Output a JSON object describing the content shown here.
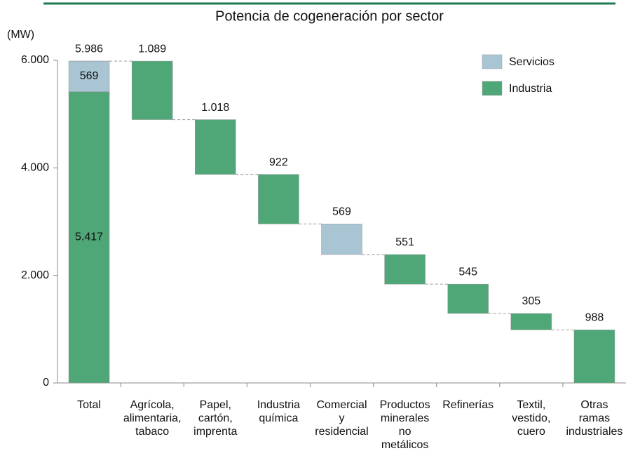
{
  "chart_data": {
    "type": "waterfall",
    "title": "Potencia de cogeneración por sector",
    "y_label": "(MW)",
    "categories": [
      [
        "Total"
      ],
      [
        "Agrícola,",
        "alimentaria,",
        "tabaco"
      ],
      [
        "Papel,",
        "cartón,",
        "imprenta"
      ],
      [
        "Industria",
        "química"
      ],
      [
        "Comercial",
        "y",
        "residencial"
      ],
      [
        "Productos",
        "minerales",
        "no",
        "metálicos"
      ],
      [
        "Refinerías"
      ],
      [
        "Textil,",
        "vestido,",
        "cuero"
      ],
      [
        "Otras",
        "ramas",
        "industriales"
      ]
    ],
    "total": {
      "value": 5986,
      "label": "5.986"
    },
    "series": [
      {
        "name": "Servicios",
        "color": "#a9c5d4",
        "values": [
          569,
          null,
          null,
          null,
          569,
          null,
          null,
          null,
          null
        ],
        "value_labels": [
          "569",
          null,
          null,
          null,
          "569",
          null,
          null,
          null,
          null
        ]
      },
      {
        "name": "Industria",
        "color": "#4fa677",
        "values": [
          5417,
          1089,
          1018,
          922,
          null,
          551,
          545,
          305,
          988
        ],
        "value_labels": [
          "5.417",
          "1.089",
          "1.018",
          "922",
          null,
          "551",
          "545",
          "305",
          "988"
        ]
      }
    ],
    "ylim": [
      0,
      6000
    ],
    "yticks": [
      0,
      {
        "value": 2000,
        "label": "2.000"
      },
      {
        "value": 4000,
        "label": "4.000"
      },
      {
        "value": 6000,
        "label": "6.000"
      }
    ],
    "legend": "top-right"
  }
}
